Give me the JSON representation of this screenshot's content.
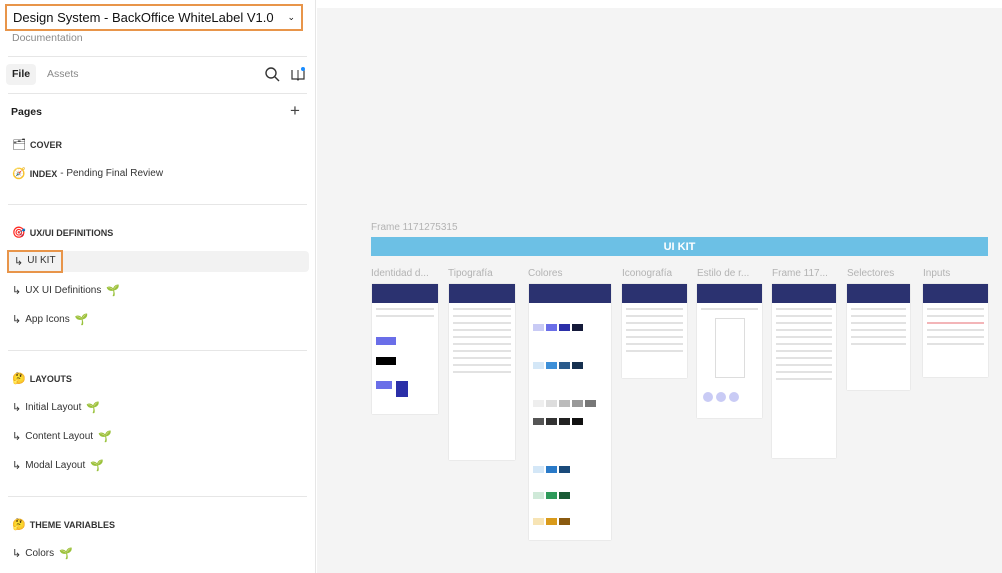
{
  "file": {
    "title": "Design System - BackOffice WhiteLabel V1.0",
    "subtitle": "Documentation"
  },
  "tabs": [
    {
      "label": "File",
      "active": true
    },
    {
      "label": "Assets",
      "active": false
    }
  ],
  "pages_heading": "Pages",
  "pages": [
    {
      "icon": "🗂",
      "bold": "COVER",
      "rest": "",
      "sprout": false
    },
    {
      "icon": "🧭",
      "bold": "INDEX",
      "rest": " - Pending Final Review",
      "sprout": false
    },
    {
      "icon": "🎯",
      "bold": "UX/UI DEFINITIONS",
      "rest": "",
      "sprout": false
    },
    {
      "icon": "↳",
      "bold": "",
      "rest": "UI KIT",
      "sprout": false,
      "selected": true
    },
    {
      "icon": "↳",
      "bold": "",
      "rest": "UX UI Definitions",
      "sprout": true
    },
    {
      "icon": "↳",
      "bold": "",
      "rest": "App Icons",
      "sprout": true
    },
    {
      "icon": "🤔",
      "bold": "LAYOUTS",
      "rest": "",
      "sprout": false
    },
    {
      "icon": "↳",
      "bold": "",
      "rest": "Initial Layout",
      "sprout": true
    },
    {
      "icon": "↳",
      "bold": "",
      "rest": "Content Layout",
      "sprout": true
    },
    {
      "icon": "↳",
      "bold": "",
      "rest": "Modal Layout",
      "sprout": true
    },
    {
      "icon": "🤔",
      "bold": "THEME VARIABLES",
      "rest": "",
      "sprout": false
    },
    {
      "icon": "↳",
      "bold": "",
      "rest": "Colors",
      "sprout": true
    }
  ],
  "canvas": {
    "frame_name": "Frame 1171275315",
    "banner": "UI KIT",
    "banner_color": "#6cc0e5",
    "frames": [
      "Identidad d...",
      "Tipografía",
      "Colores",
      "Iconografía",
      "Estilo de r...",
      "Frame 117...",
      "Selectores",
      "Inputs"
    ]
  },
  "accent": "#e8954a"
}
